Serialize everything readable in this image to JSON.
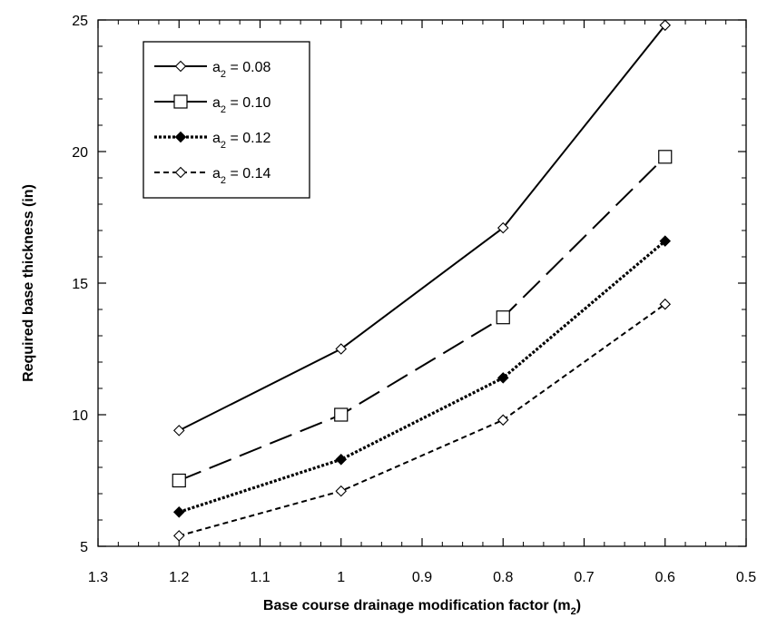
{
  "chart_data": {
    "type": "line",
    "xlabel": "Base course drainage modification factor (m",
    "xlabel_sub": "2",
    "xlabel_close": ")",
    "ylabel": "Required base thickness (in)",
    "xlim": [
      1.3,
      0.5
    ],
    "ylim": [
      5,
      25
    ],
    "x_reversed": true,
    "x_ticks": [
      1.3,
      1.2,
      1.1,
      1.0,
      0.9,
      0.8,
      0.7,
      0.6,
      0.5
    ],
    "x_tick_labels": [
      "1.3",
      "1.2",
      "1.1",
      "1",
      "0.9",
      "0.8",
      "0.7",
      "0.6",
      "0.5"
    ],
    "y_ticks": [
      5,
      10,
      15,
      20,
      25
    ],
    "y_tick_labels": [
      "5",
      "10",
      "15",
      "20",
      "25"
    ],
    "grid": false,
    "legend_position": "top-left",
    "x": [
      1.2,
      1.0,
      0.8,
      0.6
    ],
    "series": [
      {
        "name_main": "a",
        "name_sub": "2",
        "name_value": " = 0.08",
        "values": [
          9.4,
          12.5,
          17.1,
          24.8
        ],
        "marker": "diamond-open",
        "dash": "solid"
      },
      {
        "name_main": "a",
        "name_sub": "2",
        "name_value": " = 0.10",
        "values": [
          7.5,
          10.0,
          13.7,
          19.8
        ],
        "marker": "square-open",
        "dash": "longdash"
      },
      {
        "name_main": "a",
        "name_sub": "2",
        "name_value": " = 0.12",
        "values": [
          6.3,
          8.3,
          11.4,
          16.6
        ],
        "marker": "diamond-filled",
        "dash": "dotted"
      },
      {
        "name_main": "a",
        "name_sub": "2",
        "name_value": " = 0.14",
        "values": [
          5.4,
          7.1,
          9.8,
          14.2
        ],
        "marker": "diamond-open",
        "dash": "shortdash"
      }
    ],
    "colors": {
      "line": "#000000",
      "background": "#ffffff"
    }
  }
}
